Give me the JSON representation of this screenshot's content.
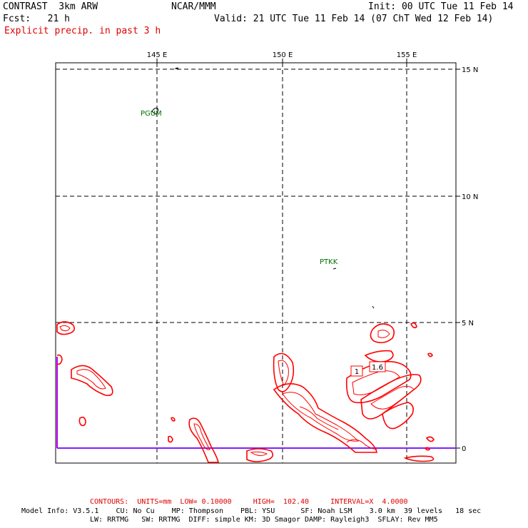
{
  "header": {
    "model": "CONTRAST  3km ARW",
    "org": "NCAR/MMM",
    "init": "Init: 00 UTC Tue 11 Feb 14",
    "fcst": "Fcst:   21 h",
    "valid": "Valid: 21 UTC Tue 11 Feb 14 (07 ChT Wed 12 Feb 14)",
    "field": "Explicit precip. in past 3 h"
  },
  "map": {
    "lon_labels": [
      "145 E",
      "150 E",
      "155 E"
    ],
    "lat_labels": [
      "15 N",
      "10 N",
      "5 N",
      "0"
    ],
    "stations": [
      {
        "id": "PGUM",
        "label": "PGUM"
      },
      {
        "id": "PTKK",
        "label": "PTKK"
      }
    ],
    "contour_labels": [
      "1",
      "1.6"
    ],
    "colors": {
      "contour": "#ff0000",
      "grid": "#000000",
      "station": "#007000",
      "equator": "#a000ff"
    }
  },
  "footer": {
    "contours": "CONTOURS:  UNITS=mm  LOW= 0.10000     HIGH=  102.40     INTERVAL=X  4.0000",
    "model_info_1": "Model Info: V3.5.1    CU: No Cu    MP: Thompson    PBL: YSU      SF: Noah LSM    3.0 km  39 levels   18 sec",
    "model_info_2": "LW: RRTMG   SW: RRTMG  DIFF: simple KM: 3D Smagor DAMP: Rayleigh3  SFLAY: Rev MM5"
  }
}
